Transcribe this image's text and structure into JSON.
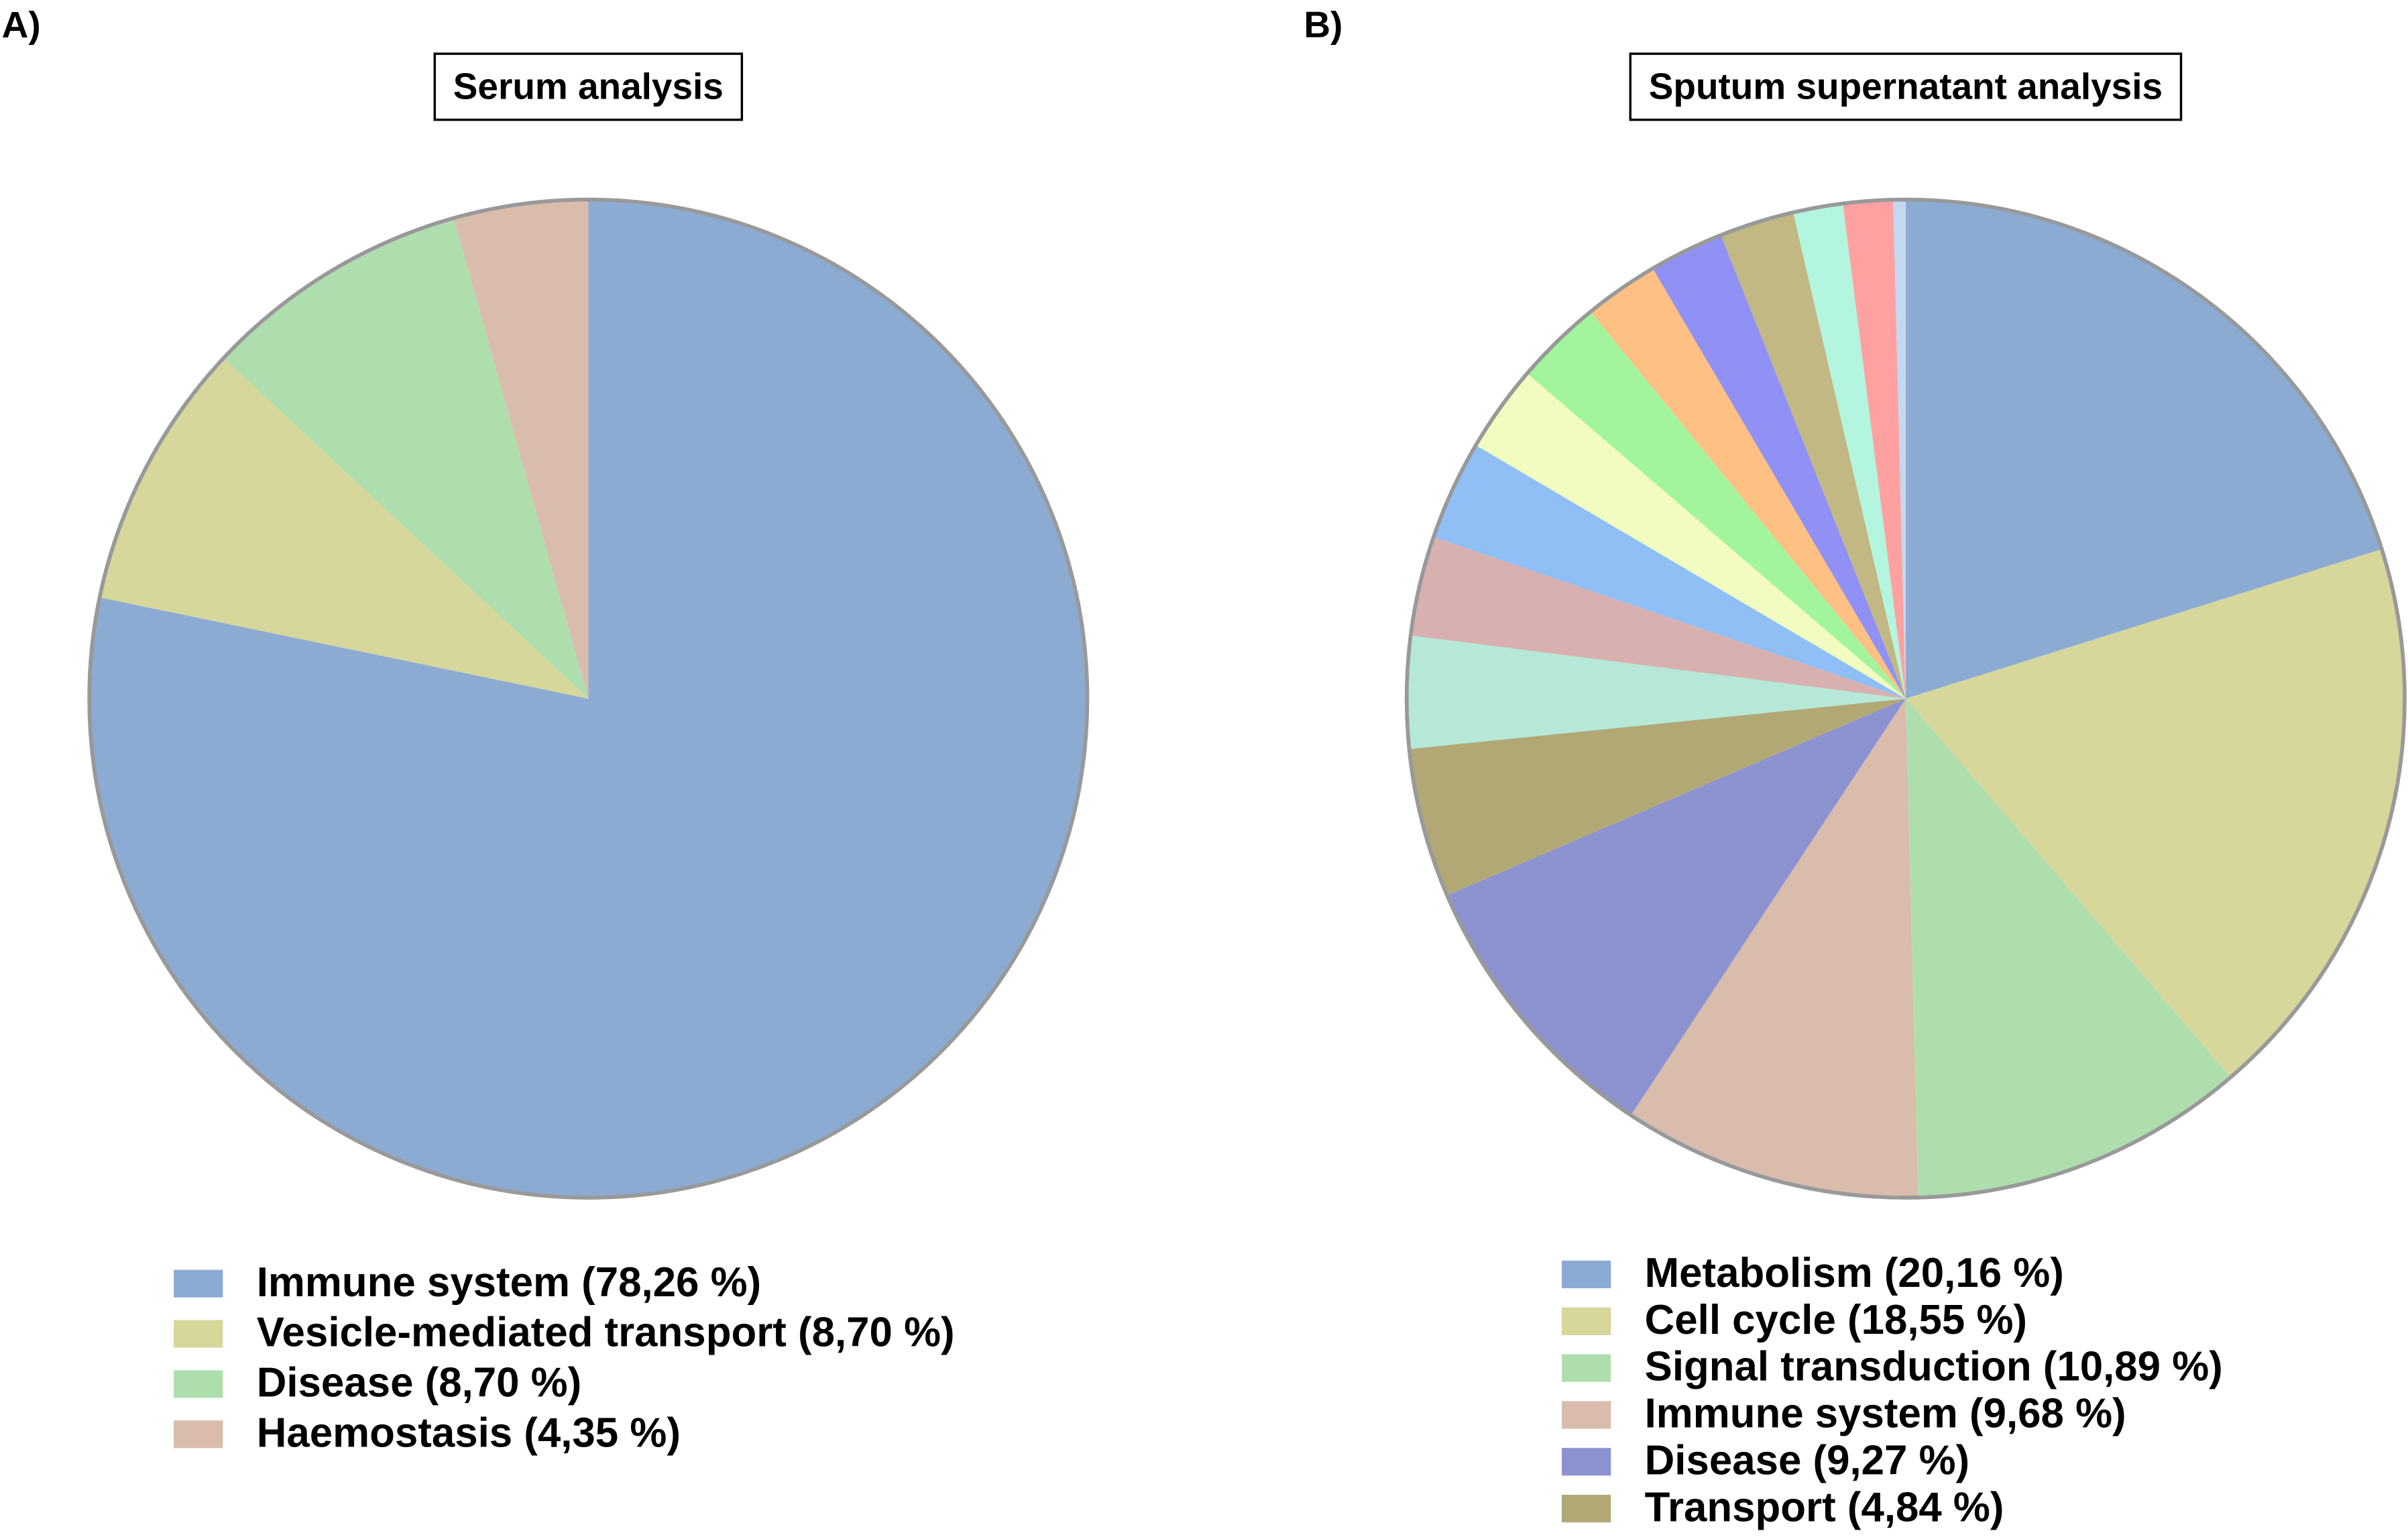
{
  "chart_data": [
    {
      "type": "pie",
      "label": "A)",
      "title": "Serum analysis",
      "categories": [
        "Immune system (78,26 %)",
        "Vesicle-mediated transport (8,70 %)",
        "Disease (8,70 %)",
        "Haemostasis (4,35 %)"
      ],
      "values": [
        78.26,
        8.7,
        8.7,
        4.35
      ],
      "colors": [
        "#8cabd3",
        "#d7d69b",
        "#afdeae",
        "#d9bcac"
      ]
    },
    {
      "type": "pie",
      "label": "B)",
      "title": "Sputum supernatant analysis",
      "categories": [
        "Metabolism (20,16 %)",
        "Cell cycle (18,55 %)",
        "Signal transduction (10,89 %)",
        "Immune system (9,68 %)",
        "Disease (9,27 %)",
        "Transport (4,84 %)",
        null,
        null,
        null,
        null,
        null,
        null,
        null,
        null,
        null,
        null,
        null
      ],
      "values": [
        20.16,
        18.55,
        10.89,
        9.68,
        9.27,
        4.84,
        3.63,
        3.23,
        3.23,
        2.82,
        2.82,
        2.42,
        2.42,
        2.42,
        1.61,
        1.61,
        0.4
      ],
      "colors": [
        "#8cabd3",
        "#d7d69b",
        "#afdeae",
        "#d9bcac",
        "#8c92cf",
        "#b1a876",
        "#b5e8d7",
        "#d8b0b0",
        "#90bff5",
        "#f2fcc0",
        "#a2f59c",
        "#ffc183",
        "#9090f5",
        "#c1b883",
        "#b3f5df",
        "#ffa1a1",
        "#c3d9f2"
      ]
    }
  ]
}
